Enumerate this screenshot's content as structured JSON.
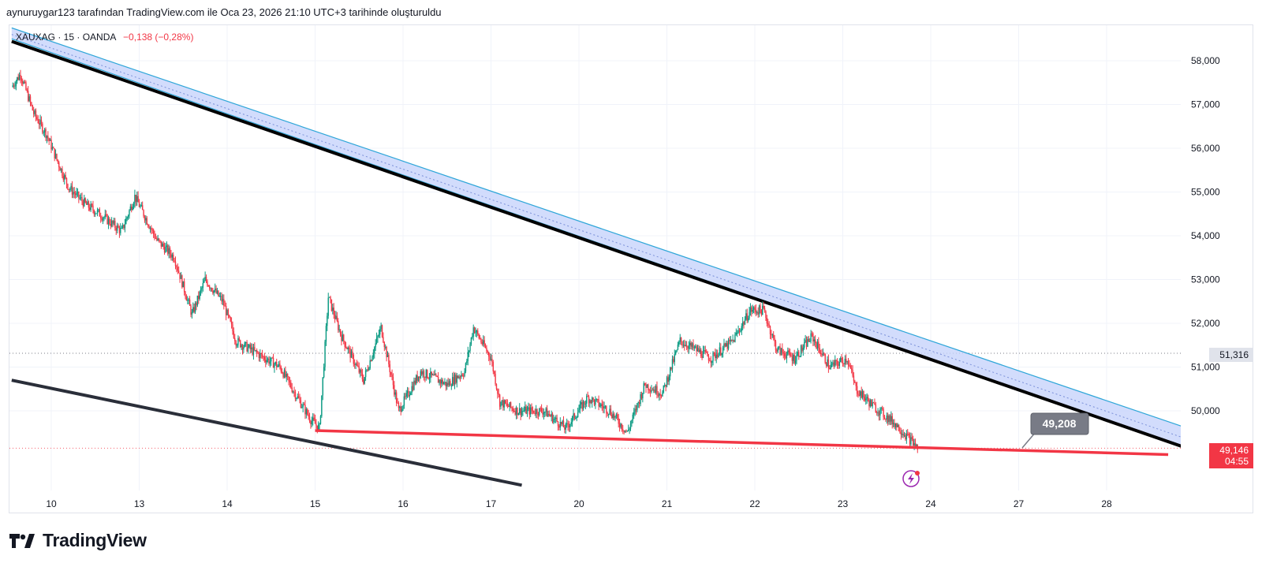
{
  "header": {
    "caption": "aynuruygar123 tarafından TradingView.com ile Oca 23, 2026 21:10 UTC+3 tarihinde oluşturuldu"
  },
  "legend": {
    "symbol": "XAUXAG · 15 · OANDA",
    "change": "−0,138 (−0,28%)"
  },
  "brand": {
    "name": "TradingView"
  },
  "price_labels": {
    "reference": "51,316",
    "current": "49,146",
    "countdown": "04:55",
    "callout": "49,208"
  },
  "colors": {
    "up": "#089981",
    "down": "#f23645",
    "channel_fill": "#c7d3fb",
    "channel_edge": "#2ea6d8",
    "trendline": "#000000",
    "support": "#f23645",
    "reference_label_bg": "#e0e3eb",
    "current_label_bg": "#f23645",
    "callout_bg": "#787b86"
  },
  "chart_data": {
    "type": "candlestick",
    "y_axis": {
      "range": [
        48.2,
        58.8
      ],
      "ticks": [
        "50,000",
        "51,000",
        "52,000",
        "53,000",
        "54,000",
        "55,000",
        "56,000",
        "57,000",
        "58,000"
      ],
      "tick_values": [
        50,
        51,
        52,
        53,
        54,
        55,
        56,
        57,
        58
      ],
      "side": "right"
    },
    "x_axis": {
      "labels": [
        "10",
        "13",
        "14",
        "15",
        "16",
        "17",
        "20",
        "21",
        "22",
        "23",
        "24",
        "27",
        "28"
      ],
      "label_positions_index": [
        0,
        1,
        2,
        3,
        4,
        5,
        6,
        7,
        8,
        9,
        10,
        11,
        12
      ],
      "sessions_total": 13.1
    },
    "price_path": [
      [
        -0.45,
        57.4
      ],
      [
        -0.35,
        57.7
      ],
      [
        -0.2,
        56.8
      ],
      [
        -0.05,
        56.3
      ],
      [
        0.05,
        55.8
      ],
      [
        0.2,
        55.1
      ],
      [
        0.4,
        54.7
      ],
      [
        0.55,
        54.5
      ],
      [
        0.8,
        54.1
      ],
      [
        0.95,
        54.9
      ],
      [
        1.2,
        53.9
      ],
      [
        1.4,
        53.5
      ],
      [
        1.6,
        52.2
      ],
      [
        1.75,
        53.0
      ],
      [
        1.95,
        52.5
      ],
      [
        2.1,
        51.6
      ],
      [
        2.35,
        51.3
      ],
      [
        2.6,
        51.0
      ],
      [
        2.8,
        50.3
      ],
      [
        2.95,
        49.8
      ],
      [
        3.05,
        49.6
      ],
      [
        3.15,
        52.6
      ],
      [
        3.3,
        51.7
      ],
      [
        3.55,
        50.7
      ],
      [
        3.75,
        51.9
      ],
      [
        3.95,
        50.0
      ],
      [
        4.2,
        50.9
      ],
      [
        4.5,
        50.6
      ],
      [
        4.7,
        50.9
      ],
      [
        4.8,
        51.9
      ],
      [
        5.0,
        51.2
      ],
      [
        5.1,
        50.2
      ],
      [
        5.3,
        50.0
      ],
      [
        5.6,
        50.0
      ],
      [
        5.85,
        49.6
      ],
      [
        6.1,
        50.3
      ],
      [
        6.35,
        50.0
      ],
      [
        6.55,
        49.5
      ],
      [
        6.75,
        50.6
      ],
      [
        6.95,
        50.4
      ],
      [
        7.15,
        51.6
      ],
      [
        7.5,
        51.2
      ],
      [
        7.75,
        51.6
      ],
      [
        7.95,
        52.3
      ],
      [
        8.1,
        52.3
      ],
      [
        8.25,
        51.4
      ],
      [
        8.45,
        51.2
      ],
      [
        8.65,
        51.7
      ],
      [
        8.85,
        51.0
      ],
      [
        9.05,
        51.2
      ],
      [
        9.15,
        50.5
      ],
      [
        9.35,
        50.1
      ],
      [
        9.6,
        49.7
      ],
      [
        9.85,
        49.15
      ]
    ],
    "channel": {
      "top_line": [
        [
          -0.45,
          58.75
        ],
        [
          12.85,
          49.65
        ]
      ],
      "middle_line": [
        [
          -0.45,
          58.6
        ],
        [
          12.85,
          49.4
        ]
      ],
      "bottom_line": [
        [
          -0.45,
          58.5
        ],
        [
          12.85,
          49.2
        ]
      ]
    },
    "trendline": [
      [
        -0.45,
        58.55
      ],
      [
        12.85,
        49.3
      ]
    ],
    "lower_trendline": [
      [
        -0.45,
        50.7
      ],
      [
        5.35,
        48.3
      ]
    ],
    "support_line": [
      [
        3.0,
        49.55
      ],
      [
        12.7,
        49.0
      ]
    ],
    "reference_price": 51.316,
    "current_price": 49.146,
    "callout_price": 49.208
  }
}
